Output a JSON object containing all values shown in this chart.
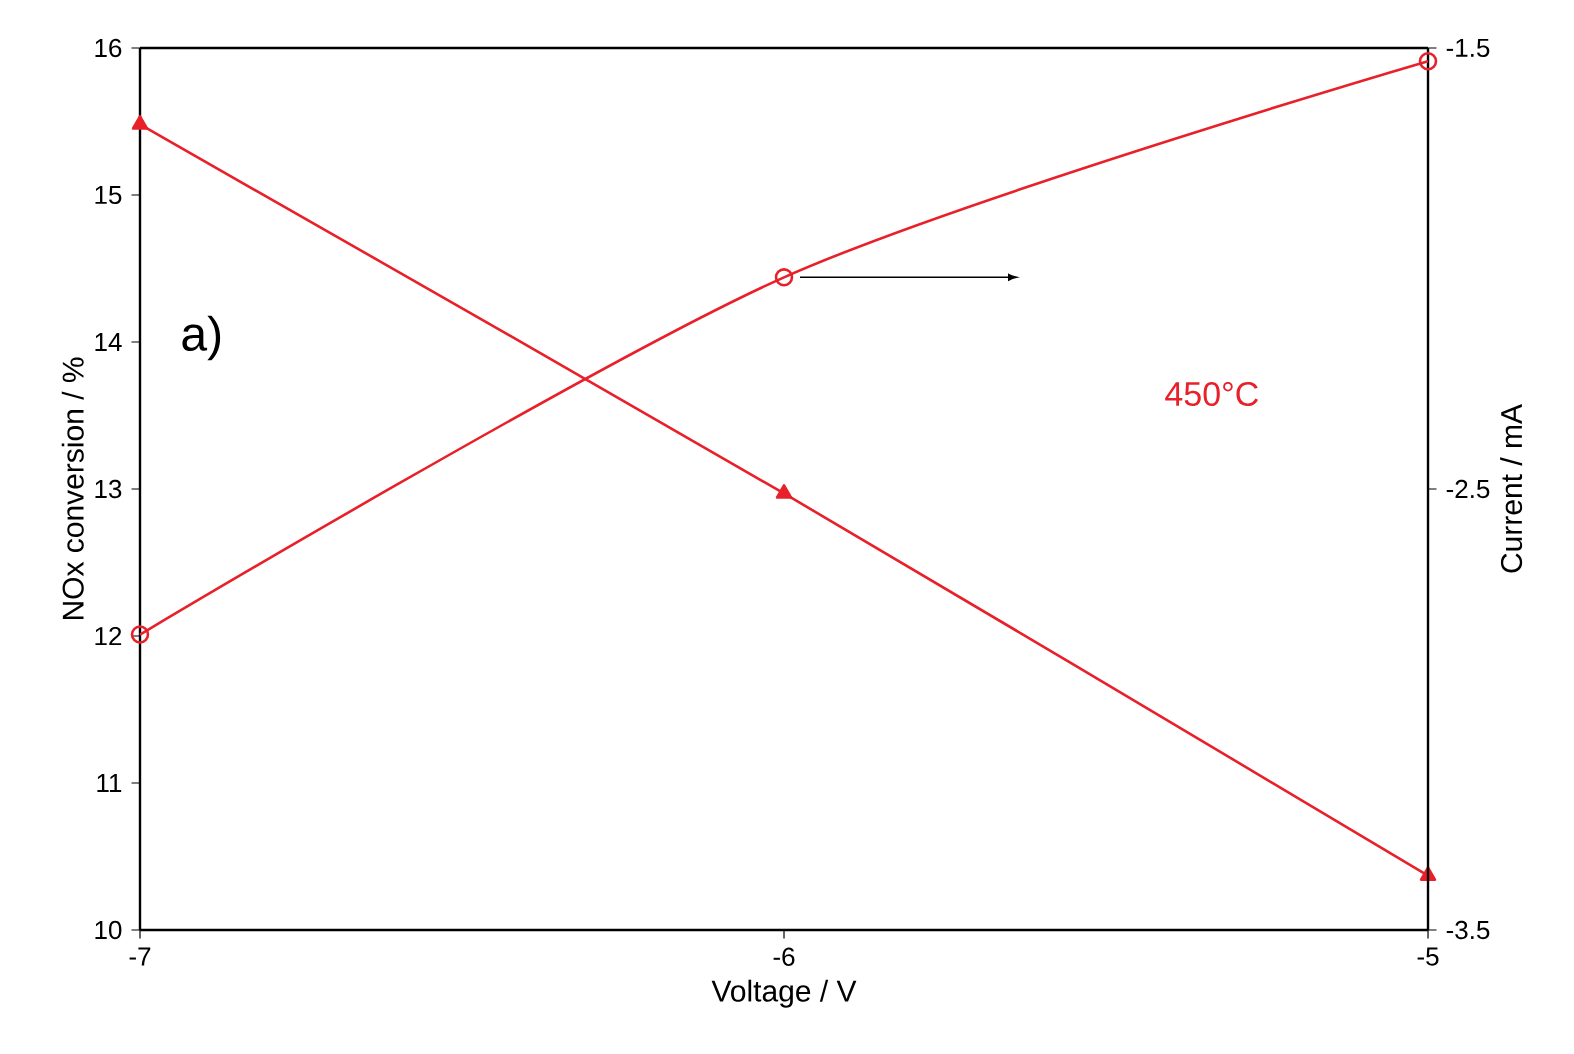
{
  "chart_data": {
    "type": "line",
    "xlabel": "Voltage / V",
    "ylabel": "NOx conversion / %",
    "y2label": "Current / mA",
    "x": [
      -7,
      -6,
      -5
    ],
    "xlim": [
      -7,
      -5
    ],
    "xticks": [
      -7,
      -6,
      -5
    ],
    "ylim": [
      10,
      16
    ],
    "yticks": [
      10,
      11,
      12,
      13,
      14,
      15,
      16
    ],
    "y2lim": [
      -3.5,
      -1.5
    ],
    "y2ticks": [
      -3.5,
      -2.5,
      -1.5
    ],
    "series": [
      {
        "color": "#e8202a",
        "marker": "triangle",
        "values": [
          15.48,
          12.97,
          10.37
        ]
      },
      {
        "color": "#e8202a",
        "marker": "circle",
        "axis": "y2",
        "values": [
          -2.83,
          -2.02,
          -1.53
        ]
      }
    ],
    "annotations": [
      "a)",
      "450°C"
    ]
  }
}
